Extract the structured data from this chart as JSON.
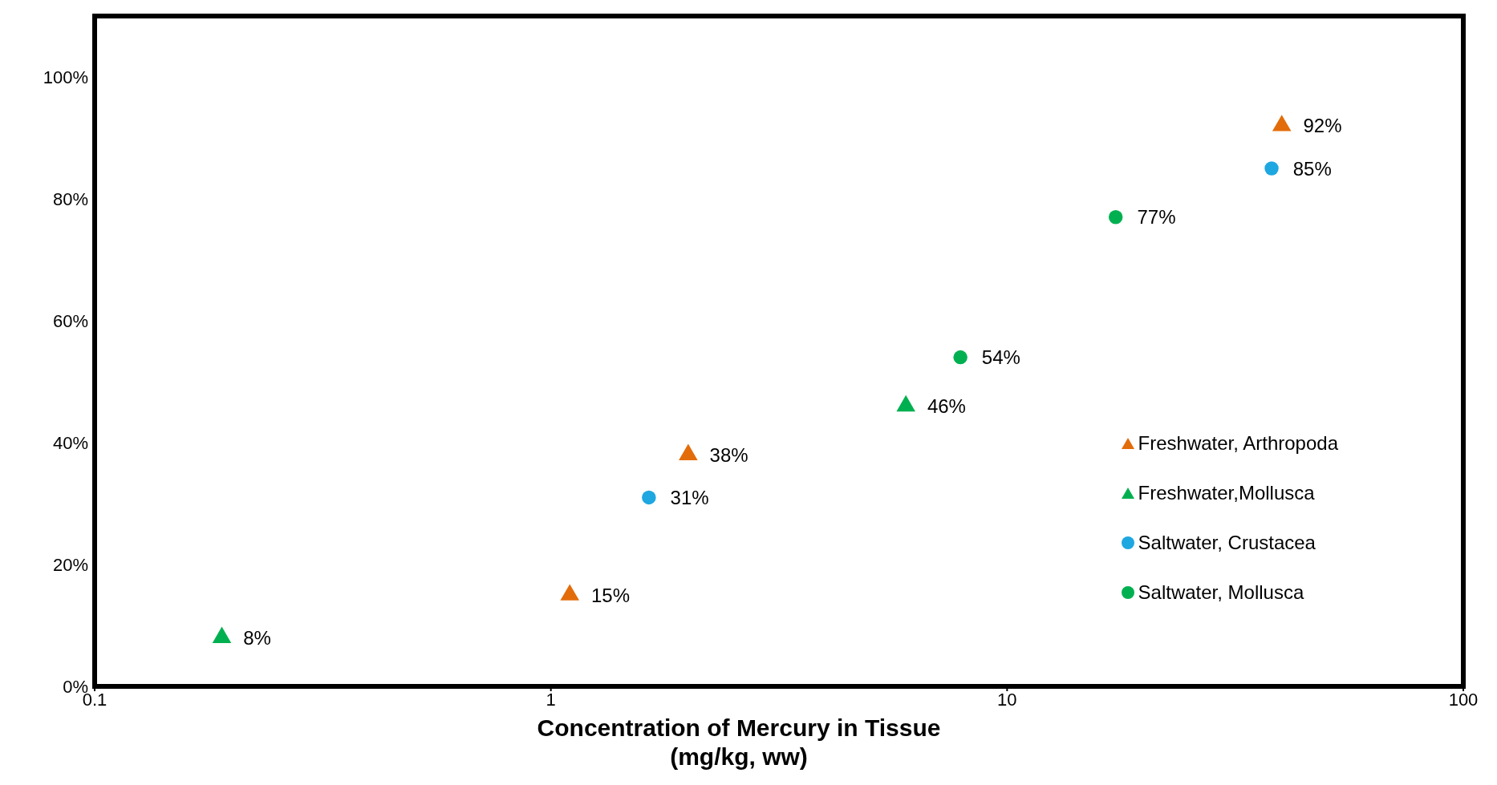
{
  "chart_data": {
    "type": "scatter",
    "xlabel": "Concentration of Mercury in Tissue\n(mg/kg, ww)",
    "log": "x",
    "xlim": [
      0.1,
      100
    ],
    "xticks": [
      0.1,
      1,
      10,
      100
    ],
    "ylim": [
      0,
      110
    ],
    "yticks": [
      {
        "value": 0,
        "label": "0%"
      },
      {
        "value": 20,
        "label": "20%"
      },
      {
        "value": 40,
        "label": "40%"
      },
      {
        "value": 60,
        "label": "60%"
      },
      {
        "value": 80,
        "label": "80%"
      },
      {
        "value": 100,
        "label": "100%"
      }
    ],
    "grid": false,
    "legend": "bottom right",
    "series": [
      {
        "name": "Freshwater, Arthropoda",
        "color": "#e36c0a",
        "marker": "triangle",
        "x": [
          1.1,
          2.0,
          40
        ],
        "values": [
          15,
          38,
          92
        ],
        "value_labels": [
          "15%",
          "38%",
          "92%"
        ]
      },
      {
        "name": "Freshwater,Mollusca",
        "color": "#00b050",
        "marker": "triangle",
        "x": [
          0.19,
          6
        ],
        "values": [
          8,
          46
        ],
        "value_labels": [
          "8%",
          "46%"
        ]
      },
      {
        "name": "Saltwater, Crustacea",
        "color": "#1ea7e0",
        "marker": "circle",
        "x": [
          1.64,
          38
        ],
        "values": [
          31,
          85
        ],
        "value_labels": [
          "31%",
          "85%"
        ]
      },
      {
        "name": "Saltwater, Mollusca",
        "color": "#00b050",
        "marker": "circle",
        "x": [
          7.9,
          17.3
        ],
        "values": [
          54,
          77
        ],
        "value_labels": [
          "54%",
          "77%"
        ]
      }
    ]
  }
}
